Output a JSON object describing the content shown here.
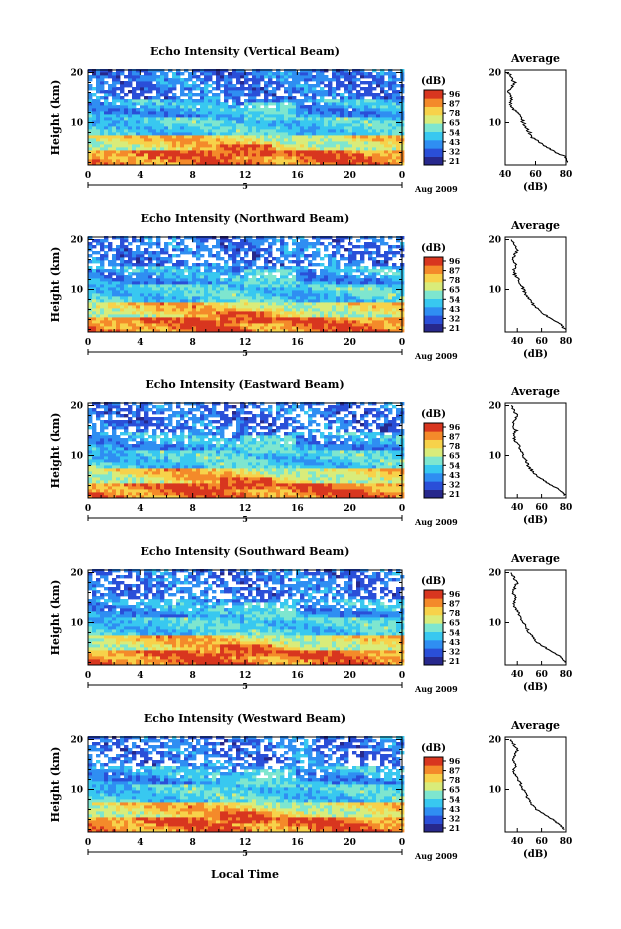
{
  "figure": {
    "xlabel": "Local Time",
    "date_label": "Aug 2009",
    "date_marker": "5",
    "colorbar_unit": "(dB)",
    "colorbar_ticks": [
      "96",
      "87",
      "78",
      "65",
      "54",
      "43",
      "32",
      "21"
    ],
    "colors": {
      "scale": [
        "#27288c",
        "#2a4fd8",
        "#2f8ef2",
        "#38c8f0",
        "#7ee6cf",
        "#d9ec7a",
        "#f7d24a",
        "#f48a2a",
        "#d8361f"
      ],
      "profile_line": "#000000",
      "axis": "#000000"
    }
  },
  "chart_data": [
    {
      "type": "heatmap",
      "title": "Echo Intensity (Vertical Beam)",
      "ylabel": "Height (km)",
      "x_ticks": [
        "0",
        "4",
        "8",
        "12",
        "16",
        "20",
        "0"
      ],
      "y_ticks": [
        "10",
        "20"
      ],
      "xlim": [
        0,
        24
      ],
      "ylim": [
        1.5,
        20.5
      ],
      "avg_title": "Average",
      "avg_xlabel": "(dB)",
      "avg_xticks": [
        "40",
        "60",
        "80"
      ],
      "avg_xlim": [
        40,
        80
      ],
      "avg_profile": {
        "height": [
          2,
          3,
          4,
          5,
          6,
          7,
          8,
          9,
          10,
          11,
          12,
          13,
          14,
          15,
          16,
          17,
          18,
          19,
          20
        ],
        "db": [
          82,
          80,
          74,
          68,
          63,
          58,
          56,
          54,
          52,
          50,
          48,
          44,
          43,
          45,
          42,
          44,
          46,
          44,
          42
        ]
      }
    },
    {
      "type": "heatmap",
      "title": "Echo Intensity (Northward Beam)",
      "ylabel": "Height (km)",
      "x_ticks": [
        "0",
        "4",
        "8",
        "12",
        "16",
        "20",
        "0"
      ],
      "y_ticks": [
        "10",
        "20"
      ],
      "xlim": [
        0,
        24
      ],
      "ylim": [
        1.5,
        20.5
      ],
      "avg_title": "Average",
      "avg_xlabel": "(dB)",
      "avg_xticks": [
        "40",
        "60",
        "80"
      ],
      "avg_xlim": [
        30,
        80
      ],
      "avg_profile": {
        "height": [
          2,
          3,
          4,
          5,
          6,
          7,
          8,
          9,
          10,
          11,
          12,
          13,
          14,
          15,
          16,
          17,
          18,
          19,
          20
        ],
        "db": [
          79,
          76,
          70,
          62,
          57,
          53,
          50,
          47,
          45,
          43,
          41,
          38,
          37,
          39,
          36,
          38,
          40,
          37,
          35
        ]
      }
    },
    {
      "type": "heatmap",
      "title": "Echo Intensity (Eastward Beam)",
      "ylabel": "Height (km)",
      "x_ticks": [
        "0",
        "4",
        "8",
        "12",
        "16",
        "20",
        "0"
      ],
      "y_ticks": [
        "10",
        "20"
      ],
      "xlim": [
        0,
        24
      ],
      "ylim": [
        1.5,
        20.5
      ],
      "avg_title": "Average",
      "avg_xlabel": "(dB)",
      "avg_xticks": [
        "40",
        "60",
        "80"
      ],
      "avg_xlim": [
        30,
        80
      ],
      "avg_profile": {
        "height": [
          2,
          3,
          4,
          5,
          6,
          7,
          8,
          9,
          10,
          11,
          12,
          13,
          14,
          15,
          16,
          17,
          18,
          19,
          20
        ],
        "db": [
          79,
          75,
          69,
          62,
          56,
          52,
          49,
          47,
          45,
          43,
          41,
          38,
          37,
          39,
          36,
          38,
          40,
          37,
          35
        ]
      }
    },
    {
      "type": "heatmap",
      "title": "Echo Intensity (Southward Beam)",
      "ylabel": "Height (km)",
      "x_ticks": [
        "0",
        "4",
        "8",
        "12",
        "16",
        "20",
        "0"
      ],
      "y_ticks": [
        "10",
        "20"
      ],
      "xlim": [
        0,
        24
      ],
      "ylim": [
        1.5,
        20.5
      ],
      "avg_title": "Average",
      "avg_xlabel": "(dB)",
      "avg_xticks": [
        "40",
        "60",
        "80"
      ],
      "avg_xlim": [
        30,
        80
      ],
      "avg_profile": {
        "height": [
          2,
          3,
          4,
          5,
          6,
          7,
          8,
          9,
          10,
          11,
          12,
          13,
          14,
          15,
          16,
          17,
          18,
          19,
          20
        ],
        "db": [
          79,
          76,
          70,
          63,
          57,
          53,
          50,
          47,
          45,
          43,
          41,
          38,
          37,
          39,
          36,
          38,
          40,
          37,
          35
        ]
      }
    },
    {
      "type": "heatmap",
      "title": "Echo Intensity (Westward Beam)",
      "ylabel": "Height (km)",
      "x_ticks": [
        "0",
        "4",
        "8",
        "12",
        "16",
        "20",
        "0"
      ],
      "y_ticks": [
        "10",
        "20"
      ],
      "xlim": [
        0,
        24
      ],
      "ylim": [
        1.5,
        20.5
      ],
      "avg_title": "Average",
      "avg_xlabel": "(dB)",
      "avg_xticks": [
        "40",
        "60",
        "80"
      ],
      "avg_xlim": [
        30,
        80
      ],
      "avg_profile": {
        "height": [
          2,
          3,
          4,
          5,
          6,
          7,
          8,
          9,
          10,
          11,
          12,
          13,
          14,
          15,
          16,
          17,
          18,
          19,
          20
        ],
        "db": [
          79,
          75,
          69,
          62,
          56,
          52,
          49,
          47,
          45,
          43,
          41,
          38,
          37,
          39,
          36,
          38,
          40,
          37,
          35
        ]
      }
    }
  ]
}
